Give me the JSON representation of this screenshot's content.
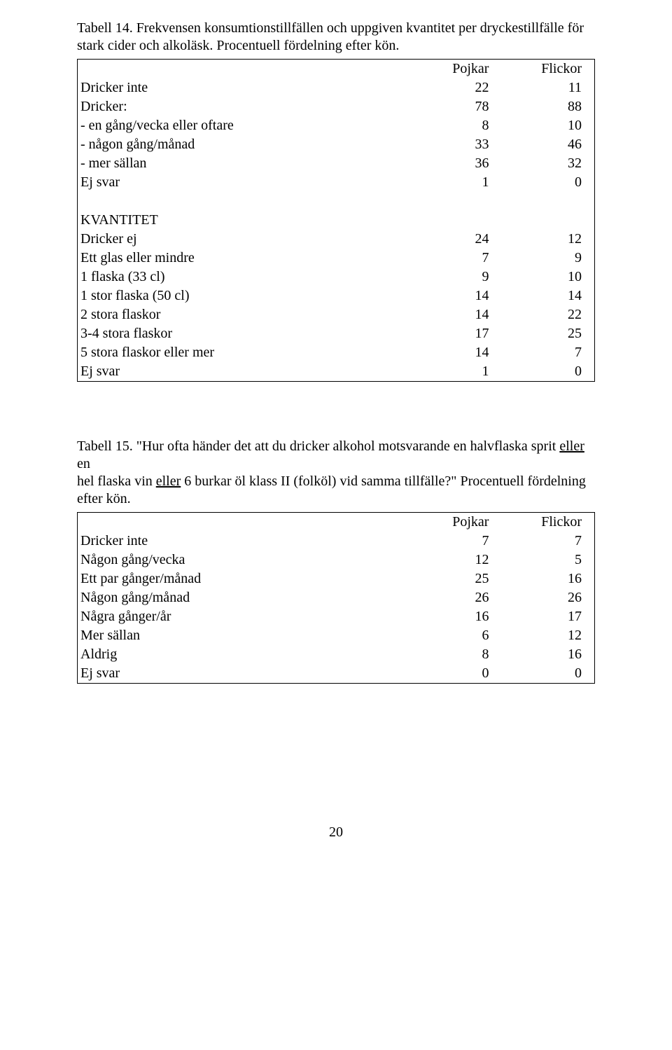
{
  "t14": {
    "caption_lead": "Tabell 14. ",
    "caption_rest_1": "Frekvensen konsumtionstillfällen och uppgiven kvantitet per dryckestillfälle för",
    "caption_rest_2": "stark cider och alkoläsk. Procentuell fördelning efter kön.",
    "col_pojkar": "Pojkar",
    "col_flickor": "Flickor",
    "rows": [
      {
        "label": "Dricker inte",
        "p": "22",
        "f": "11"
      },
      {
        "label": "Dricker:",
        "p": "78",
        "f": "88"
      },
      {
        "label": "- en gång/vecka eller oftare",
        "p": "8",
        "f": "10"
      },
      {
        "label": "- någon gång/månad",
        "p": "33",
        "f": "46"
      },
      {
        "label": "- mer sällan",
        "p": "36",
        "f": "32"
      },
      {
        "label": "Ej svar",
        "p": "1",
        "f": "0"
      }
    ],
    "section2": "KVANTITET",
    "rows2": [
      {
        "label": "Dricker ej",
        "p": "24",
        "f": "12"
      },
      {
        "label": "Ett glas eller mindre",
        "p": "7",
        "f": "9"
      },
      {
        "label": "1 flaska (33 cl)",
        "p": "9",
        "f": "10"
      },
      {
        "label": "1 stor flaska (50 cl)",
        "p": "14",
        "f": "14"
      },
      {
        "label": "2 stora flaskor",
        "p": "14",
        "f": "22"
      },
      {
        "label": "3-4 stora flaskor",
        "p": "17",
        "f": "25"
      },
      {
        "label": "5 stora flaskor eller mer",
        "p": "14",
        "f": "7"
      },
      {
        "label": "Ej svar",
        "p": "1",
        "f": "0"
      }
    ]
  },
  "t15": {
    "caption_lead": "Tabell 15. ",
    "cap_a": "\"Hur ofta händer det att du dricker alkohol motsvarande en halvflaska sprit ",
    "cap_u1": "eller",
    "cap_b": " en",
    "cap_c": "hel flaska vin ",
    "cap_u2": "eller",
    "cap_d": " 6 burkar öl klass II (folköl) vid samma tillfälle?\" Procentuell fördelning",
    "cap_e": "efter kön.",
    "col_pojkar": "Pojkar",
    "col_flickor": "Flickor",
    "rows": [
      {
        "label": "Dricker inte",
        "p": "7",
        "f": "7"
      },
      {
        "label": "Någon gång/vecka",
        "p": "12",
        "f": "5"
      },
      {
        "label": "Ett par gånger/månad",
        "p": "25",
        "f": "16"
      },
      {
        "label": "Någon gång/månad",
        "p": "26",
        "f": "26"
      },
      {
        "label": "Några gånger/år",
        "p": "16",
        "f": "17"
      },
      {
        "label": "Mer sällan",
        "p": "6",
        "f": "12"
      },
      {
        "label": "Aldrig",
        "p": "8",
        "f": "16"
      },
      {
        "label": "Ej svar",
        "p": "0",
        "f": "0"
      }
    ]
  },
  "page_number": "20"
}
